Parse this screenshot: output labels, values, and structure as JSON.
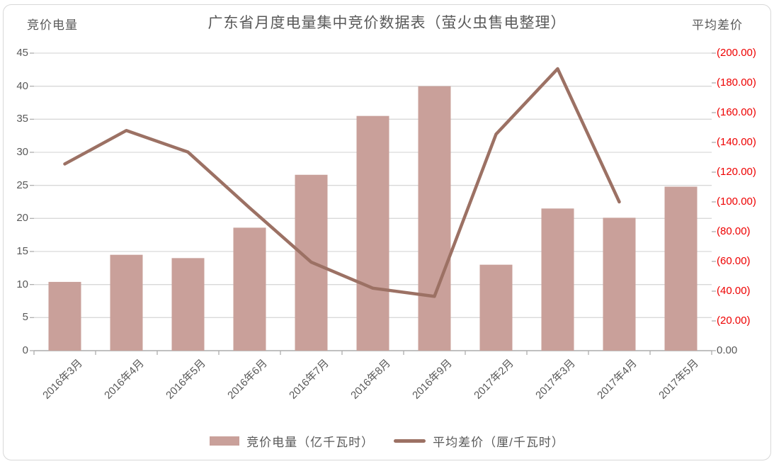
{
  "title": "广东省月度电量集中竞价数据表（萤火虫售电整理）",
  "left_axis_title": "竞价电量",
  "right_axis_title": "平均差价",
  "left_ticks": [
    "45",
    "40",
    "35",
    "30",
    "25",
    "20",
    "15",
    "10",
    "5",
    "0"
  ],
  "right_ticks": [
    "(200.00)",
    "(180.00)",
    "(160.00)",
    "(140.00)",
    "(120.00)",
    "(100.00)",
    "(80.00)",
    "(60.00)",
    "(40.00)",
    "(20.00)",
    "0.00"
  ],
  "legend": [
    {
      "label": "竞价电量（亿千瓦时）",
      "type": "bar"
    },
    {
      "label": "平均差价（厘/千瓦时）",
      "type": "line"
    }
  ],
  "colors": {
    "bar": "#c9a09a",
    "line": "#9c7164",
    "grid": "#d9d9d9",
    "axis_line": "#aeaeae",
    "axis_text": "#595959",
    "negative_tick": "#ee0000",
    "title_text": "#595959"
  },
  "chart_data": {
    "type": "bar",
    "subtype": "combo-bar-line",
    "title": "广东省月度电量集中竞价数据表（萤火虫售电整理）",
    "categories": [
      "2016年3月",
      "2016年4月",
      "2016年5月",
      "2016年6月",
      "2016年7月",
      "2016年8月",
      "2016年9月",
      "2017年2月",
      "2017年3月",
      "2017年4月",
      "2017年5月"
    ],
    "series": [
      {
        "name": "竞价电量（亿千瓦时）",
        "type": "bar",
        "axis": "left",
        "values": [
          10.4,
          14.5,
          14.0,
          18.6,
          26.6,
          35.5,
          40.0,
          13.0,
          21.5,
          20.1,
          24.8
        ]
      },
      {
        "name": "平均差价（厘/千瓦时）",
        "type": "line",
        "axis": "right",
        "values": [
          -125.5,
          -148,
          -133.5,
          -96,
          -59.5,
          -42,
          -36.5,
          -145.5,
          -189.5,
          -100,
          null
        ]
      }
    ],
    "left_axis": {
      "label": "竞价电量",
      "min": 0,
      "max": 45,
      "step": 5
    },
    "right_axis": {
      "label": "平均差价",
      "min": -200,
      "max": 0,
      "step": 20,
      "format": "parentheses-negative"
    },
    "grid": true,
    "legend_position": "bottom"
  }
}
